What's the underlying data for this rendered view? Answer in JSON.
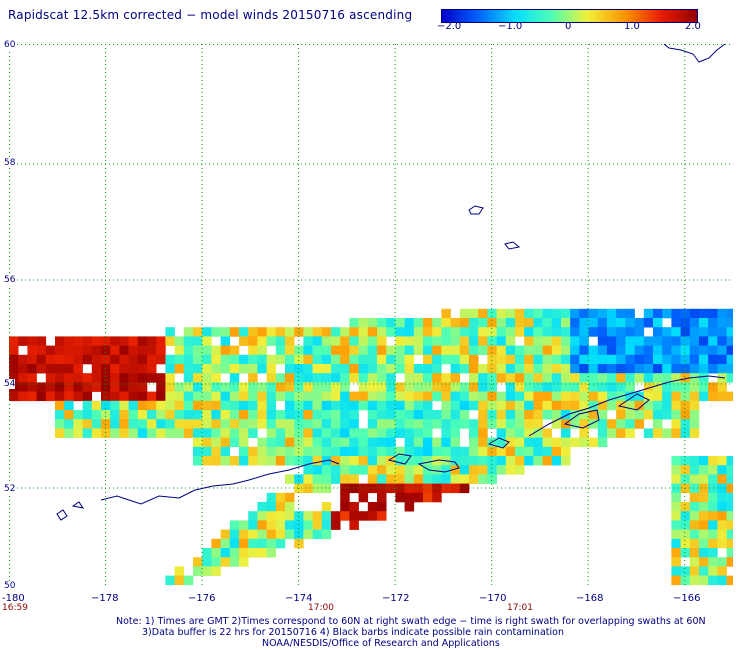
{
  "title": "Rapidscat 12.5km corrected − model winds 20150716 ascending",
  "colorbar": {
    "min": -2.0,
    "max": 2.0,
    "ticks": [
      "−2.0",
      "−1.0",
      "0",
      "1.0",
      "2.0"
    ],
    "stops": [
      "#0000c8",
      "#0064ff",
      "#00dcff",
      "#50ffb4",
      "#f0f03c",
      "#ff9600",
      "#e61e00",
      "#960000"
    ]
  },
  "map": {
    "lon_range": [
      -180,
      -165
    ],
    "lat_range": [
      50,
      60
    ],
    "lat_labels": [
      "60",
      "58",
      "56",
      "54",
      "52",
      "50"
    ],
    "lon_labels": [
      "-180",
      "−178",
      "−176",
      "−174",
      "−172",
      "−170",
      "−168",
      "−166"
    ],
    "times": [
      "16:59",
      "17:00",
      "17:01"
    ],
    "grid_color": "#00a000",
    "coast_color": "#000080"
  },
  "notes": {
    "line1": "Note: 1) Times are GMT 2)Times correspond to 60N at right swath edge − time is right swath for overlapping swaths at 60N",
    "line2": "3)Data buffer is 22 hrs for 20150716 4) Black barbs indicate possible rain contamination",
    "line3": "NOAA/NESDIS/Office of Research and Applications"
  }
}
